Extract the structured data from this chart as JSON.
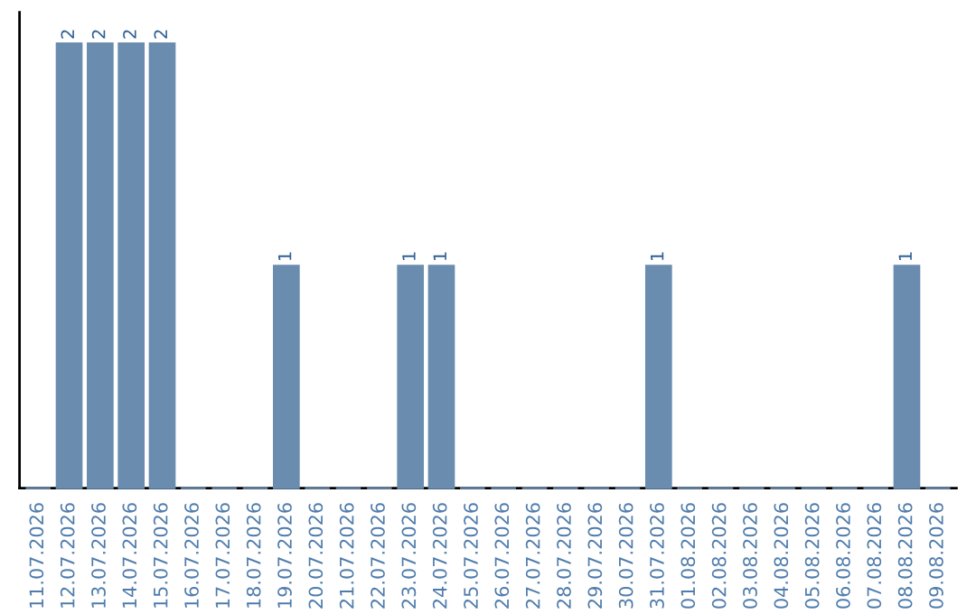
{
  "chart_data": {
    "type": "bar",
    "categories": [
      "11.07.2026",
      "12.07.2026",
      "13.07.2026",
      "14.07.2026",
      "15.07.2026",
      "16.07.2026",
      "17.07.2026",
      "18.07.2026",
      "19.07.2026",
      "20.07.2026",
      "21.07.2026",
      "22.07.2026",
      "23.07.2026",
      "24.07.2026",
      "25.07.2026",
      "26.07.2026",
      "27.07.2026",
      "28.07.2026",
      "29.07.2026",
      "30.07.2026",
      "31.07.2026",
      "01.08.2026",
      "02.08.2026",
      "03.08.2026",
      "04.08.2026",
      "05.08.2026",
      "06.08.2026",
      "07.08.2026",
      "08.08.2026",
      "09.08.2026"
    ],
    "values": [
      0,
      2,
      2,
      2,
      2,
      0,
      0,
      0,
      1,
      0,
      0,
      0,
      1,
      1,
      0,
      0,
      0,
      0,
      0,
      0,
      1,
      0,
      0,
      0,
      0,
      0,
      0,
      0,
      1,
      0
    ],
    "value_labels": [
      null,
      "2",
      "2",
      "2",
      "2",
      null,
      null,
      null,
      "1",
      null,
      null,
      null,
      "1",
      "1",
      null,
      null,
      null,
      null,
      null,
      null,
      "1",
      null,
      null,
      null,
      null,
      null,
      null,
      null,
      "1",
      null
    ],
    "color": "#6a8caf",
    "tick_labels": "x",
    "grid": false,
    "legend": false
  }
}
